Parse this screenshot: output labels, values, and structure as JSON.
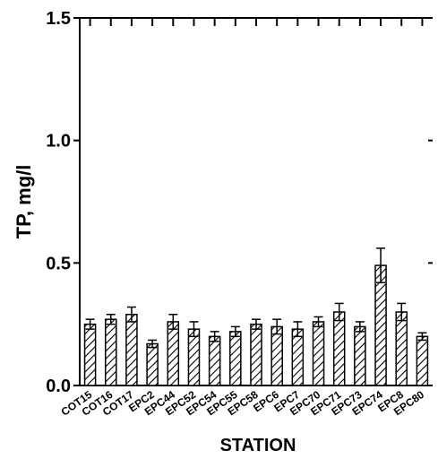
{
  "chart_data": {
    "type": "bar",
    "xlabel": "STATION",
    "ylabel": "TP, mg/l",
    "ylim": [
      0,
      1.5
    ],
    "yticks": [
      "0.0",
      "0.5",
      "1.0",
      "1.5"
    ],
    "grid": false,
    "categories": [
      "COT15",
      "COT16",
      "COT17",
      "EPC2",
      "EPC44",
      "EPC52",
      "EPC54",
      "EPC55",
      "EPC58",
      "EPC6",
      "EPC7",
      "EPC70",
      "EPC71",
      "EPC73",
      "EPC74",
      "EPC8",
      "EPC80"
    ],
    "series": [
      {
        "values": [
          0.25,
          0.27,
          0.29,
          0.17,
          0.26,
          0.23,
          0.2,
          0.22,
          0.25,
          0.24,
          0.23,
          0.26,
          0.3,
          0.24,
          0.49,
          0.3,
          0.2
        ],
        "errors": [
          0.02,
          0.02,
          0.03,
          0.015,
          0.03,
          0.03,
          0.02,
          0.02,
          0.02,
          0.03,
          0.03,
          0.02,
          0.035,
          0.02,
          0.07,
          0.035,
          0.015
        ]
      }
    ],
    "colors": {
      "bar_stroke": "#000000",
      "hatch": "#000000",
      "background": "#ffffff"
    }
  }
}
